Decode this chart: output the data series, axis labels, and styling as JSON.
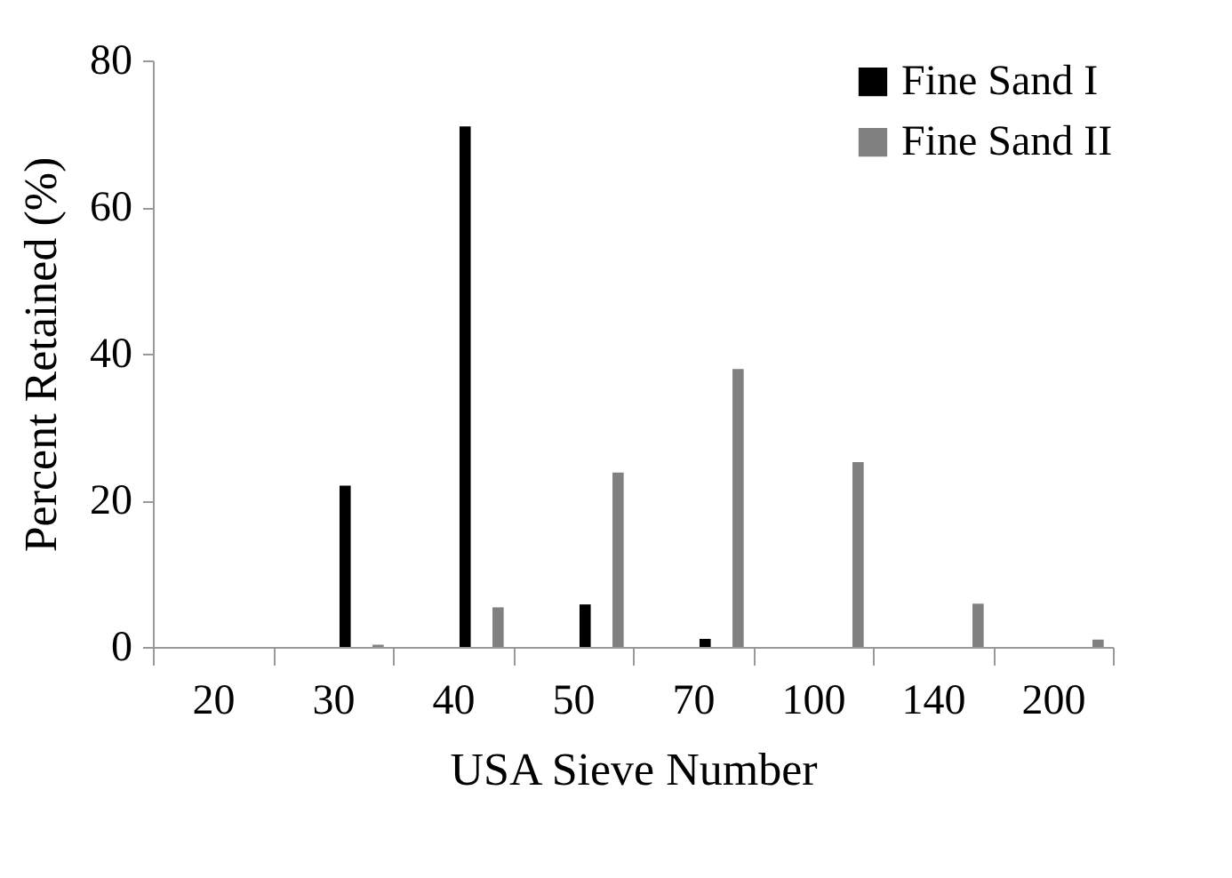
{
  "chart_data": {
    "type": "bar",
    "xlabel": "USA Sieve Number",
    "ylabel": "Percent Retained (%)",
    "categories": [
      "20",
      "30",
      "40",
      "50",
      "70",
      "100",
      "140",
      "200"
    ],
    "series": [
      {
        "name": "Fine Sand I",
        "color": "#000000",
        "values": [
          0,
          22,
          71,
          5.8,
          1.1,
          0,
          0,
          0
        ]
      },
      {
        "name": "Fine Sand II",
        "color": "#808080",
        "values": [
          0,
          0.3,
          5.4,
          23.8,
          37.9,
          25.2,
          5.9,
          1.0
        ]
      }
    ],
    "ylim": [
      0,
      80
    ],
    "yticks": [
      0,
      20,
      40,
      60,
      80
    ],
    "grid": false,
    "legend": "top right"
  }
}
